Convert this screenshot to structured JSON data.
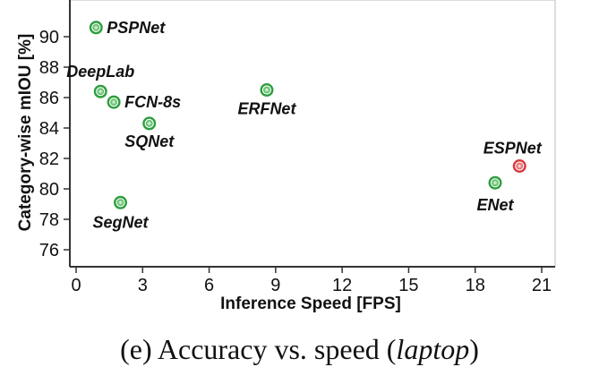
{
  "chart_data": {
    "type": "scatter",
    "title": "",
    "xlabel": "Inference Speed [FPS]",
    "ylabel": "Category-wise mIOU [%]",
    "xlim": [
      0,
      21
    ],
    "ylim": [
      75,
      92
    ],
    "xticks": [
      0,
      3,
      6,
      9,
      12,
      15,
      18,
      21
    ],
    "yticks": [
      76,
      78,
      80,
      82,
      84,
      86,
      88,
      90
    ],
    "grid": false,
    "points": [
      {
        "name": "PSPNet",
        "x": 0.9,
        "y": 90.6,
        "color": "#2e9e3e"
      },
      {
        "name": "DeepLab",
        "x": 1.1,
        "y": 86.4,
        "color": "#2e9e3e"
      },
      {
        "name": "FCN-8s",
        "x": 1.7,
        "y": 85.7,
        "color": "#2e9e3e"
      },
      {
        "name": "SQNet",
        "x": 3.3,
        "y": 84.3,
        "color": "#2e9e3e"
      },
      {
        "name": "SegNet",
        "x": 2.0,
        "y": 79.1,
        "color": "#2e9e3e"
      },
      {
        "name": "ERFNet",
        "x": 8.6,
        "y": 86.5,
        "color": "#2e9e3e"
      },
      {
        "name": "ENet",
        "x": 18.9,
        "y": 80.4,
        "color": "#2e9e3e"
      },
      {
        "name": "ESPNet",
        "x": 20.0,
        "y": 81.5,
        "color": "#d9363e"
      }
    ]
  },
  "caption": {
    "prefix": "(e) Accuracy vs. speed (",
    "emph": "laptop",
    "suffix": ")"
  }
}
